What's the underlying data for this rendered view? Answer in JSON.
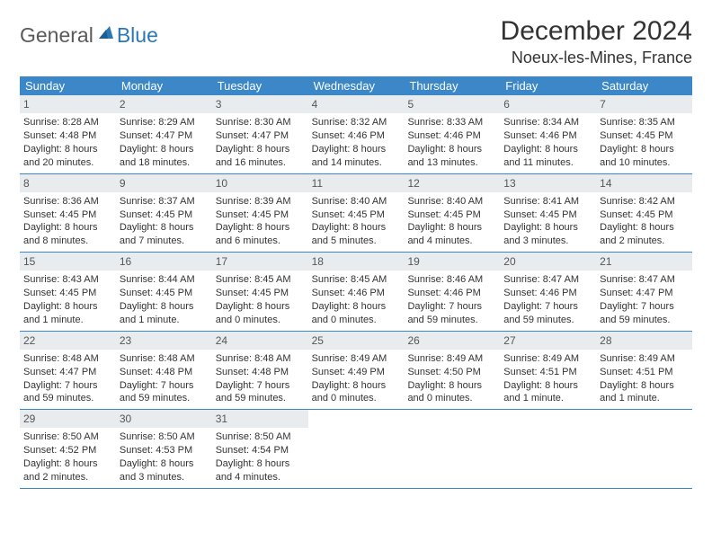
{
  "logo": {
    "general": "General",
    "blue": "Blue"
  },
  "title": "December 2024",
  "location": "Noeux-les-Mines, France",
  "colors": {
    "header_bg": "#3b87c8",
    "header_text": "#ffffff",
    "daynum_bg": "#e9ecef",
    "daynum_text": "#555555",
    "body_text": "#333333",
    "rule": "#3b87c8",
    "logo_gray": "#5a5a5a",
    "logo_blue": "#2a78b8",
    "page_bg": "#ffffff"
  },
  "typography": {
    "title_fontsize": 30,
    "location_fontsize": 18,
    "dayheader_fontsize": 13,
    "daynum_fontsize": 12,
    "body_fontsize": 11,
    "logo_fontsize": 23
  },
  "day_headers": [
    "Sunday",
    "Monday",
    "Tuesday",
    "Wednesday",
    "Thursday",
    "Friday",
    "Saturday"
  ],
  "weeks": [
    [
      {
        "n": "1",
        "sr": "Sunrise: 8:28 AM",
        "ss": "Sunset: 4:48 PM",
        "d1": "Daylight: 8 hours",
        "d2": "and 20 minutes."
      },
      {
        "n": "2",
        "sr": "Sunrise: 8:29 AM",
        "ss": "Sunset: 4:47 PM",
        "d1": "Daylight: 8 hours",
        "d2": "and 18 minutes."
      },
      {
        "n": "3",
        "sr": "Sunrise: 8:30 AM",
        "ss": "Sunset: 4:47 PM",
        "d1": "Daylight: 8 hours",
        "d2": "and 16 minutes."
      },
      {
        "n": "4",
        "sr": "Sunrise: 8:32 AM",
        "ss": "Sunset: 4:46 PM",
        "d1": "Daylight: 8 hours",
        "d2": "and 14 minutes."
      },
      {
        "n": "5",
        "sr": "Sunrise: 8:33 AM",
        "ss": "Sunset: 4:46 PM",
        "d1": "Daylight: 8 hours",
        "d2": "and 13 minutes."
      },
      {
        "n": "6",
        "sr": "Sunrise: 8:34 AM",
        "ss": "Sunset: 4:46 PM",
        "d1": "Daylight: 8 hours",
        "d2": "and 11 minutes."
      },
      {
        "n": "7",
        "sr": "Sunrise: 8:35 AM",
        "ss": "Sunset: 4:45 PM",
        "d1": "Daylight: 8 hours",
        "d2": "and 10 minutes."
      }
    ],
    [
      {
        "n": "8",
        "sr": "Sunrise: 8:36 AM",
        "ss": "Sunset: 4:45 PM",
        "d1": "Daylight: 8 hours",
        "d2": "and 8 minutes."
      },
      {
        "n": "9",
        "sr": "Sunrise: 8:37 AM",
        "ss": "Sunset: 4:45 PM",
        "d1": "Daylight: 8 hours",
        "d2": "and 7 minutes."
      },
      {
        "n": "10",
        "sr": "Sunrise: 8:39 AM",
        "ss": "Sunset: 4:45 PM",
        "d1": "Daylight: 8 hours",
        "d2": "and 6 minutes."
      },
      {
        "n": "11",
        "sr": "Sunrise: 8:40 AM",
        "ss": "Sunset: 4:45 PM",
        "d1": "Daylight: 8 hours",
        "d2": "and 5 minutes."
      },
      {
        "n": "12",
        "sr": "Sunrise: 8:40 AM",
        "ss": "Sunset: 4:45 PM",
        "d1": "Daylight: 8 hours",
        "d2": "and 4 minutes."
      },
      {
        "n": "13",
        "sr": "Sunrise: 8:41 AM",
        "ss": "Sunset: 4:45 PM",
        "d1": "Daylight: 8 hours",
        "d2": "and 3 minutes."
      },
      {
        "n": "14",
        "sr": "Sunrise: 8:42 AM",
        "ss": "Sunset: 4:45 PM",
        "d1": "Daylight: 8 hours",
        "d2": "and 2 minutes."
      }
    ],
    [
      {
        "n": "15",
        "sr": "Sunrise: 8:43 AM",
        "ss": "Sunset: 4:45 PM",
        "d1": "Daylight: 8 hours",
        "d2": "and 1 minute."
      },
      {
        "n": "16",
        "sr": "Sunrise: 8:44 AM",
        "ss": "Sunset: 4:45 PM",
        "d1": "Daylight: 8 hours",
        "d2": "and 1 minute."
      },
      {
        "n": "17",
        "sr": "Sunrise: 8:45 AM",
        "ss": "Sunset: 4:45 PM",
        "d1": "Daylight: 8 hours",
        "d2": "and 0 minutes."
      },
      {
        "n": "18",
        "sr": "Sunrise: 8:45 AM",
        "ss": "Sunset: 4:46 PM",
        "d1": "Daylight: 8 hours",
        "d2": "and 0 minutes."
      },
      {
        "n": "19",
        "sr": "Sunrise: 8:46 AM",
        "ss": "Sunset: 4:46 PM",
        "d1": "Daylight: 7 hours",
        "d2": "and 59 minutes."
      },
      {
        "n": "20",
        "sr": "Sunrise: 8:47 AM",
        "ss": "Sunset: 4:46 PM",
        "d1": "Daylight: 7 hours",
        "d2": "and 59 minutes."
      },
      {
        "n": "21",
        "sr": "Sunrise: 8:47 AM",
        "ss": "Sunset: 4:47 PM",
        "d1": "Daylight: 7 hours",
        "d2": "and 59 minutes."
      }
    ],
    [
      {
        "n": "22",
        "sr": "Sunrise: 8:48 AM",
        "ss": "Sunset: 4:47 PM",
        "d1": "Daylight: 7 hours",
        "d2": "and 59 minutes."
      },
      {
        "n": "23",
        "sr": "Sunrise: 8:48 AM",
        "ss": "Sunset: 4:48 PM",
        "d1": "Daylight: 7 hours",
        "d2": "and 59 minutes."
      },
      {
        "n": "24",
        "sr": "Sunrise: 8:48 AM",
        "ss": "Sunset: 4:48 PM",
        "d1": "Daylight: 7 hours",
        "d2": "and 59 minutes."
      },
      {
        "n": "25",
        "sr": "Sunrise: 8:49 AM",
        "ss": "Sunset: 4:49 PM",
        "d1": "Daylight: 8 hours",
        "d2": "and 0 minutes."
      },
      {
        "n": "26",
        "sr": "Sunrise: 8:49 AM",
        "ss": "Sunset: 4:50 PM",
        "d1": "Daylight: 8 hours",
        "d2": "and 0 minutes."
      },
      {
        "n": "27",
        "sr": "Sunrise: 8:49 AM",
        "ss": "Sunset: 4:51 PM",
        "d1": "Daylight: 8 hours",
        "d2": "and 1 minute."
      },
      {
        "n": "28",
        "sr": "Sunrise: 8:49 AM",
        "ss": "Sunset: 4:51 PM",
        "d1": "Daylight: 8 hours",
        "d2": "and 1 minute."
      }
    ],
    [
      {
        "n": "29",
        "sr": "Sunrise: 8:50 AM",
        "ss": "Sunset: 4:52 PM",
        "d1": "Daylight: 8 hours",
        "d2": "and 2 minutes."
      },
      {
        "n": "30",
        "sr": "Sunrise: 8:50 AM",
        "ss": "Sunset: 4:53 PM",
        "d1": "Daylight: 8 hours",
        "d2": "and 3 minutes."
      },
      {
        "n": "31",
        "sr": "Sunrise: 8:50 AM",
        "ss": "Sunset: 4:54 PM",
        "d1": "Daylight: 8 hours",
        "d2": "and 4 minutes."
      },
      null,
      null,
      null,
      null
    ]
  ]
}
